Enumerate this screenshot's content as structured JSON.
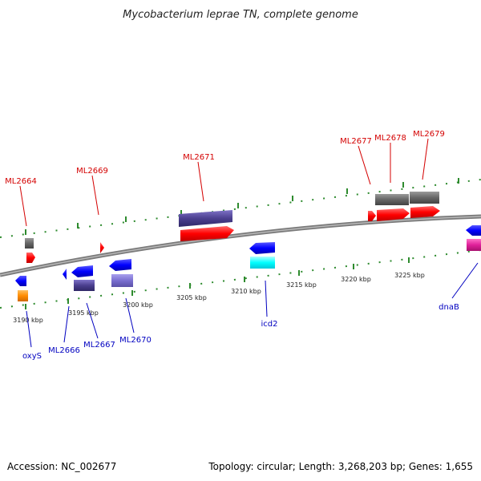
{
  "title": "Mycobacterium leprae TN, complete genome",
  "footer": {
    "accession": "Accession: NC_002677",
    "topology": "Topology: circular; Length: 3,268,203 bp; Genes: 1,655"
  },
  "scale_labels": [
    "3190 kbp",
    "3195 kbp",
    "3200 kbp",
    "3205 kbp",
    "3210 kbp",
    "3215 kbp",
    "3220 kbp",
    "3225 kbp"
  ],
  "top_genes": [
    "ML2664",
    "ML2669",
    "ML2671",
    "ML2677",
    "ML2678",
    "ML2679"
  ],
  "bottom_genes": [
    "oxyS",
    "ML2666",
    "ML2667",
    "ML2670",
    "icd2",
    "dnaB"
  ],
  "colors": {
    "forward_cds": "#ff0000",
    "forward_bar": "#666666",
    "reverse_cds": "#0000ff",
    "backbone": "#888888",
    "tick": "#2e8b2e",
    "purple": "#4b3f8f",
    "lavender": "#7a6fd0",
    "cyan": "#00ffff",
    "orange": "#ff8c00",
    "magenta": "#e0209a"
  }
}
